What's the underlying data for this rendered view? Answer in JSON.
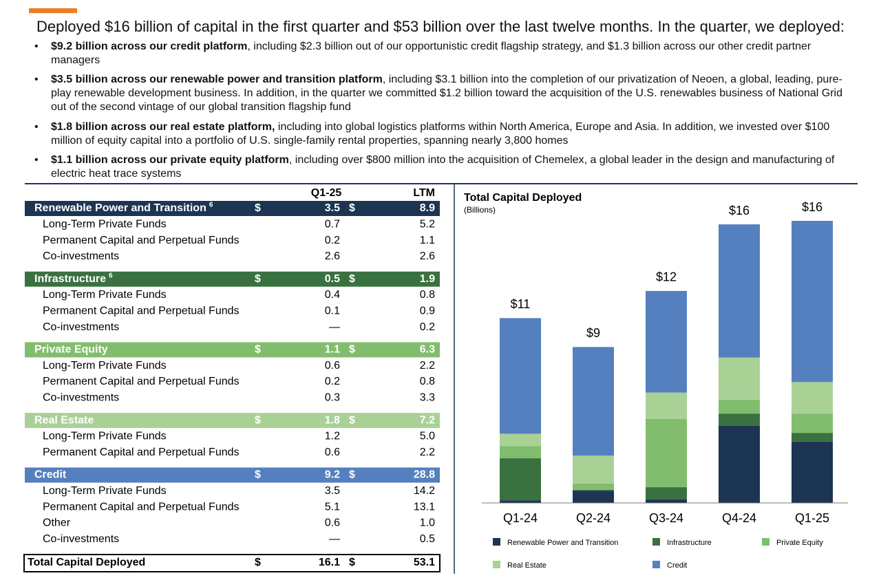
{
  "document": {
    "title": "Deployed $16 billion of capital in the first quarter and $53 billion over the last twelve months. In the quarter, we deployed:",
    "bullets": [
      {
        "bold": "$9.2 billion across our credit platform",
        "text": ", including $2.3 billion out of our opportunistic credit flagship strategy, and $1.3 billion across our other credit partner managers"
      },
      {
        "bold": "$3.5 billion across our renewable power and transition platform",
        "text": ", including $3.1 billion into the completion of our privatization of Neoen, a global, leading, pure-play renewable development business. In addition, in the quarter we committed $1.2 billion toward the acquisition of the U.S. renewables business of National Grid out of the second vintage of our global transition flagship fund"
      },
      {
        "bold": "$1.8 billion across our real estate platform,",
        "text": " including into global logistics platforms within North America, Europe and Asia. In addition, we invested over $100 million of equity capital into a portfolio of U.S. single-family rental properties, spanning nearly 3,800 homes"
      },
      {
        "bold": "$1.1 billion across our private equity platform",
        "text": ", including over $800 million into the acquisition of Chemelex, a global leader in the design and manufacturing of electric heat trace systems"
      }
    ],
    "table": {
      "headers": [
        "Q1-25",
        "LTM"
      ],
      "sections": [
        {
          "label": "Renewable Power and Transition",
          "note": "6",
          "color": "#1b3553",
          "text_color": "#ffffff",
          "currency": "$",
          "q1": "3.5",
          "ltm": "8.9",
          "rows": [
            [
              "Long-Term Private Funds",
              "0.7",
              "5.2"
            ],
            [
              "Permanent Capital and Perpetual Funds",
              "0.2",
              "1.1"
            ],
            [
              "Co-investments",
              "2.6",
              "2.6"
            ]
          ]
        },
        {
          "label": "Infrastructure",
          "note": "6",
          "color": "#3a7140",
          "text_color": "#ffffff",
          "currency": "$",
          "q1": "0.5",
          "ltm": "1.9",
          "rows": [
            [
              "Long-Term Private Funds",
              "0.4",
              "0.8"
            ],
            [
              "Permanent Capital and Perpetual Funds",
              "0.1",
              "0.9"
            ],
            [
              "Co-investments",
              "—",
              "0.2"
            ]
          ]
        },
        {
          "label": "Private Equity",
          "color": "#82bd6e",
          "text_color": "#ffffff",
          "currency": "$",
          "q1": "1.1",
          "ltm": "6.3",
          "rows": [
            [
              "Long-Term Private Funds",
              "0.6",
              "2.2"
            ],
            [
              "Permanent Capital and Perpetual Funds",
              "0.2",
              "0.8"
            ],
            [
              "Co-investments",
              "0.3",
              "3.3"
            ]
          ]
        },
        {
          "label": "Real Estate",
          "color": "#a9d196",
          "text_color": "#ffffff",
          "currency": "$",
          "q1": "1.8",
          "ltm": "7.2",
          "rows": [
            [
              "Long-Term Private Funds",
              "1.2",
              "5.0"
            ],
            [
              "Permanent Capital and Perpetual Funds",
              "0.6",
              "2.2"
            ]
          ]
        },
        {
          "label": "Credit",
          "color": "#5580bf",
          "text_color": "#ffffff",
          "currency": "$",
          "q1": "9.2",
          "ltm": "28.8",
          "rows": [
            [
              "Long-Term Private Funds",
              "3.5",
              "14.2"
            ],
            [
              "Permanent Capital and Perpetual Funds",
              "5.1",
              "13.1"
            ],
            [
              "Other",
              "0.6",
              "1.0"
            ],
            [
              "Co-investments",
              "—",
              "0.5"
            ]
          ]
        }
      ],
      "total": {
        "label": "Total Capital Deployed",
        "currency": "$",
        "q1": "16.1",
        "ltm": "53.1"
      }
    }
  },
  "chart_data": {
    "type": "stacked_bar",
    "title": "Total Capital Deployed",
    "subtitle": "(Billions)",
    "categories": [
      "Q1-24",
      "Q2-24",
      "Q3-24",
      "Q4-24",
      "Q1-25"
    ],
    "total_labels": [
      "$11",
      "$9",
      "$12",
      "$16",
      "$16"
    ],
    "series": [
      {
        "name": "Renewable Power and Transition",
        "color": "#1b3553",
        "values": [
          0.15,
          0.7,
          0.2,
          4.4,
          3.5
        ]
      },
      {
        "name": "Infrastructure",
        "color": "#3a7140",
        "values": [
          2.4,
          0.05,
          0.7,
          0.7,
          0.5
        ]
      },
      {
        "name": "Private Equity",
        "color": "#82bd6e",
        "values": [
          0.7,
          0.35,
          3.9,
          0.8,
          1.1
        ]
      },
      {
        "name": "Real Estate",
        "color": "#a9d196",
        "values": [
          0.7,
          1.6,
          1.5,
          2.4,
          1.8
        ]
      },
      {
        "name": "Credit",
        "color": "#5580bf",
        "values": [
          6.6,
          6.2,
          5.8,
          7.6,
          9.2
        ]
      }
    ]
  }
}
